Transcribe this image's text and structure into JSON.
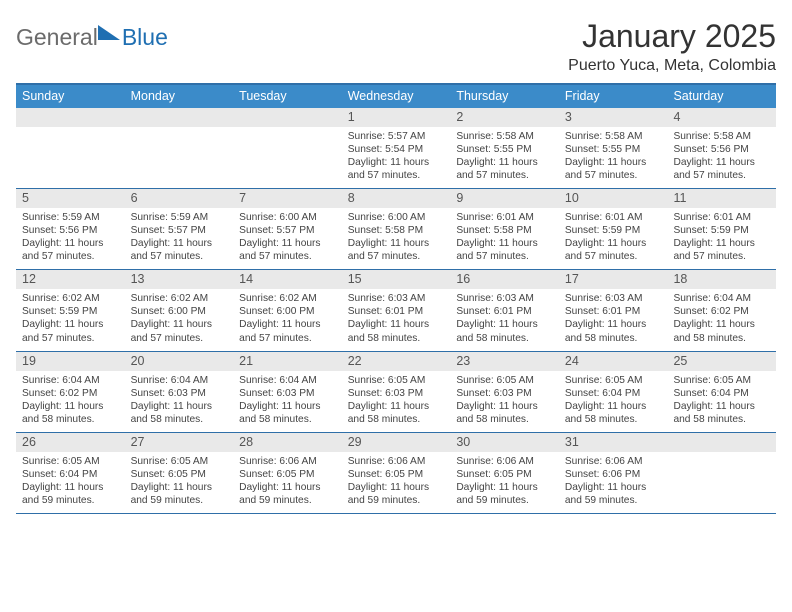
{
  "logo": {
    "text_general": "General",
    "text_blue": "Blue"
  },
  "title": "January 2025",
  "subtitle": "Puerto Yuca, Meta, Colombia",
  "colors": {
    "header_bg": "#3b8bc9",
    "header_border": "#2f6fa8",
    "daynum_bg": "#e9e9e9",
    "text": "#444444"
  },
  "day_labels": [
    "Sunday",
    "Monday",
    "Tuesday",
    "Wednesday",
    "Thursday",
    "Friday",
    "Saturday"
  ],
  "weeks": [
    [
      {
        "day": "",
        "lines": []
      },
      {
        "day": "",
        "lines": []
      },
      {
        "day": "",
        "lines": []
      },
      {
        "day": "1",
        "lines": [
          "Sunrise: 5:57 AM",
          "Sunset: 5:54 PM",
          "Daylight: 11 hours and 57 minutes."
        ]
      },
      {
        "day": "2",
        "lines": [
          "Sunrise: 5:58 AM",
          "Sunset: 5:55 PM",
          "Daylight: 11 hours and 57 minutes."
        ]
      },
      {
        "day": "3",
        "lines": [
          "Sunrise: 5:58 AM",
          "Sunset: 5:55 PM",
          "Daylight: 11 hours and 57 minutes."
        ]
      },
      {
        "day": "4",
        "lines": [
          "Sunrise: 5:58 AM",
          "Sunset: 5:56 PM",
          "Daylight: 11 hours and 57 minutes."
        ]
      }
    ],
    [
      {
        "day": "5",
        "lines": [
          "Sunrise: 5:59 AM",
          "Sunset: 5:56 PM",
          "Daylight: 11 hours and 57 minutes."
        ]
      },
      {
        "day": "6",
        "lines": [
          "Sunrise: 5:59 AM",
          "Sunset: 5:57 PM",
          "Daylight: 11 hours and 57 minutes."
        ]
      },
      {
        "day": "7",
        "lines": [
          "Sunrise: 6:00 AM",
          "Sunset: 5:57 PM",
          "Daylight: 11 hours and 57 minutes."
        ]
      },
      {
        "day": "8",
        "lines": [
          "Sunrise: 6:00 AM",
          "Sunset: 5:58 PM",
          "Daylight: 11 hours and 57 minutes."
        ]
      },
      {
        "day": "9",
        "lines": [
          "Sunrise: 6:01 AM",
          "Sunset: 5:58 PM",
          "Daylight: 11 hours and 57 minutes."
        ]
      },
      {
        "day": "10",
        "lines": [
          "Sunrise: 6:01 AM",
          "Sunset: 5:59 PM",
          "Daylight: 11 hours and 57 minutes."
        ]
      },
      {
        "day": "11",
        "lines": [
          "Sunrise: 6:01 AM",
          "Sunset: 5:59 PM",
          "Daylight: 11 hours and 57 minutes."
        ]
      }
    ],
    [
      {
        "day": "12",
        "lines": [
          "Sunrise: 6:02 AM",
          "Sunset: 5:59 PM",
          "Daylight: 11 hours and 57 minutes."
        ]
      },
      {
        "day": "13",
        "lines": [
          "Sunrise: 6:02 AM",
          "Sunset: 6:00 PM",
          "Daylight: 11 hours and 57 minutes."
        ]
      },
      {
        "day": "14",
        "lines": [
          "Sunrise: 6:02 AM",
          "Sunset: 6:00 PM",
          "Daylight: 11 hours and 57 minutes."
        ]
      },
      {
        "day": "15",
        "lines": [
          "Sunrise: 6:03 AM",
          "Sunset: 6:01 PM",
          "Daylight: 11 hours and 58 minutes."
        ]
      },
      {
        "day": "16",
        "lines": [
          "Sunrise: 6:03 AM",
          "Sunset: 6:01 PM",
          "Daylight: 11 hours and 58 minutes."
        ]
      },
      {
        "day": "17",
        "lines": [
          "Sunrise: 6:03 AM",
          "Sunset: 6:01 PM",
          "Daylight: 11 hours and 58 minutes."
        ]
      },
      {
        "day": "18",
        "lines": [
          "Sunrise: 6:04 AM",
          "Sunset: 6:02 PM",
          "Daylight: 11 hours and 58 minutes."
        ]
      }
    ],
    [
      {
        "day": "19",
        "lines": [
          "Sunrise: 6:04 AM",
          "Sunset: 6:02 PM",
          "Daylight: 11 hours and 58 minutes."
        ]
      },
      {
        "day": "20",
        "lines": [
          "Sunrise: 6:04 AM",
          "Sunset: 6:03 PM",
          "Daylight: 11 hours and 58 minutes."
        ]
      },
      {
        "day": "21",
        "lines": [
          "Sunrise: 6:04 AM",
          "Sunset: 6:03 PM",
          "Daylight: 11 hours and 58 minutes."
        ]
      },
      {
        "day": "22",
        "lines": [
          "Sunrise: 6:05 AM",
          "Sunset: 6:03 PM",
          "Daylight: 11 hours and 58 minutes."
        ]
      },
      {
        "day": "23",
        "lines": [
          "Sunrise: 6:05 AM",
          "Sunset: 6:03 PM",
          "Daylight: 11 hours and 58 minutes."
        ]
      },
      {
        "day": "24",
        "lines": [
          "Sunrise: 6:05 AM",
          "Sunset: 6:04 PM",
          "Daylight: 11 hours and 58 minutes."
        ]
      },
      {
        "day": "25",
        "lines": [
          "Sunrise: 6:05 AM",
          "Sunset: 6:04 PM",
          "Daylight: 11 hours and 58 minutes."
        ]
      }
    ],
    [
      {
        "day": "26",
        "lines": [
          "Sunrise: 6:05 AM",
          "Sunset: 6:04 PM",
          "Daylight: 11 hours and 59 minutes."
        ]
      },
      {
        "day": "27",
        "lines": [
          "Sunrise: 6:05 AM",
          "Sunset: 6:05 PM",
          "Daylight: 11 hours and 59 minutes."
        ]
      },
      {
        "day": "28",
        "lines": [
          "Sunrise: 6:06 AM",
          "Sunset: 6:05 PM",
          "Daylight: 11 hours and 59 minutes."
        ]
      },
      {
        "day": "29",
        "lines": [
          "Sunrise: 6:06 AM",
          "Sunset: 6:05 PM",
          "Daylight: 11 hours and 59 minutes."
        ]
      },
      {
        "day": "30",
        "lines": [
          "Sunrise: 6:06 AM",
          "Sunset: 6:05 PM",
          "Daylight: 11 hours and 59 minutes."
        ]
      },
      {
        "day": "31",
        "lines": [
          "Sunrise: 6:06 AM",
          "Sunset: 6:06 PM",
          "Daylight: 11 hours and 59 minutes."
        ]
      },
      {
        "day": "",
        "lines": []
      }
    ]
  ]
}
